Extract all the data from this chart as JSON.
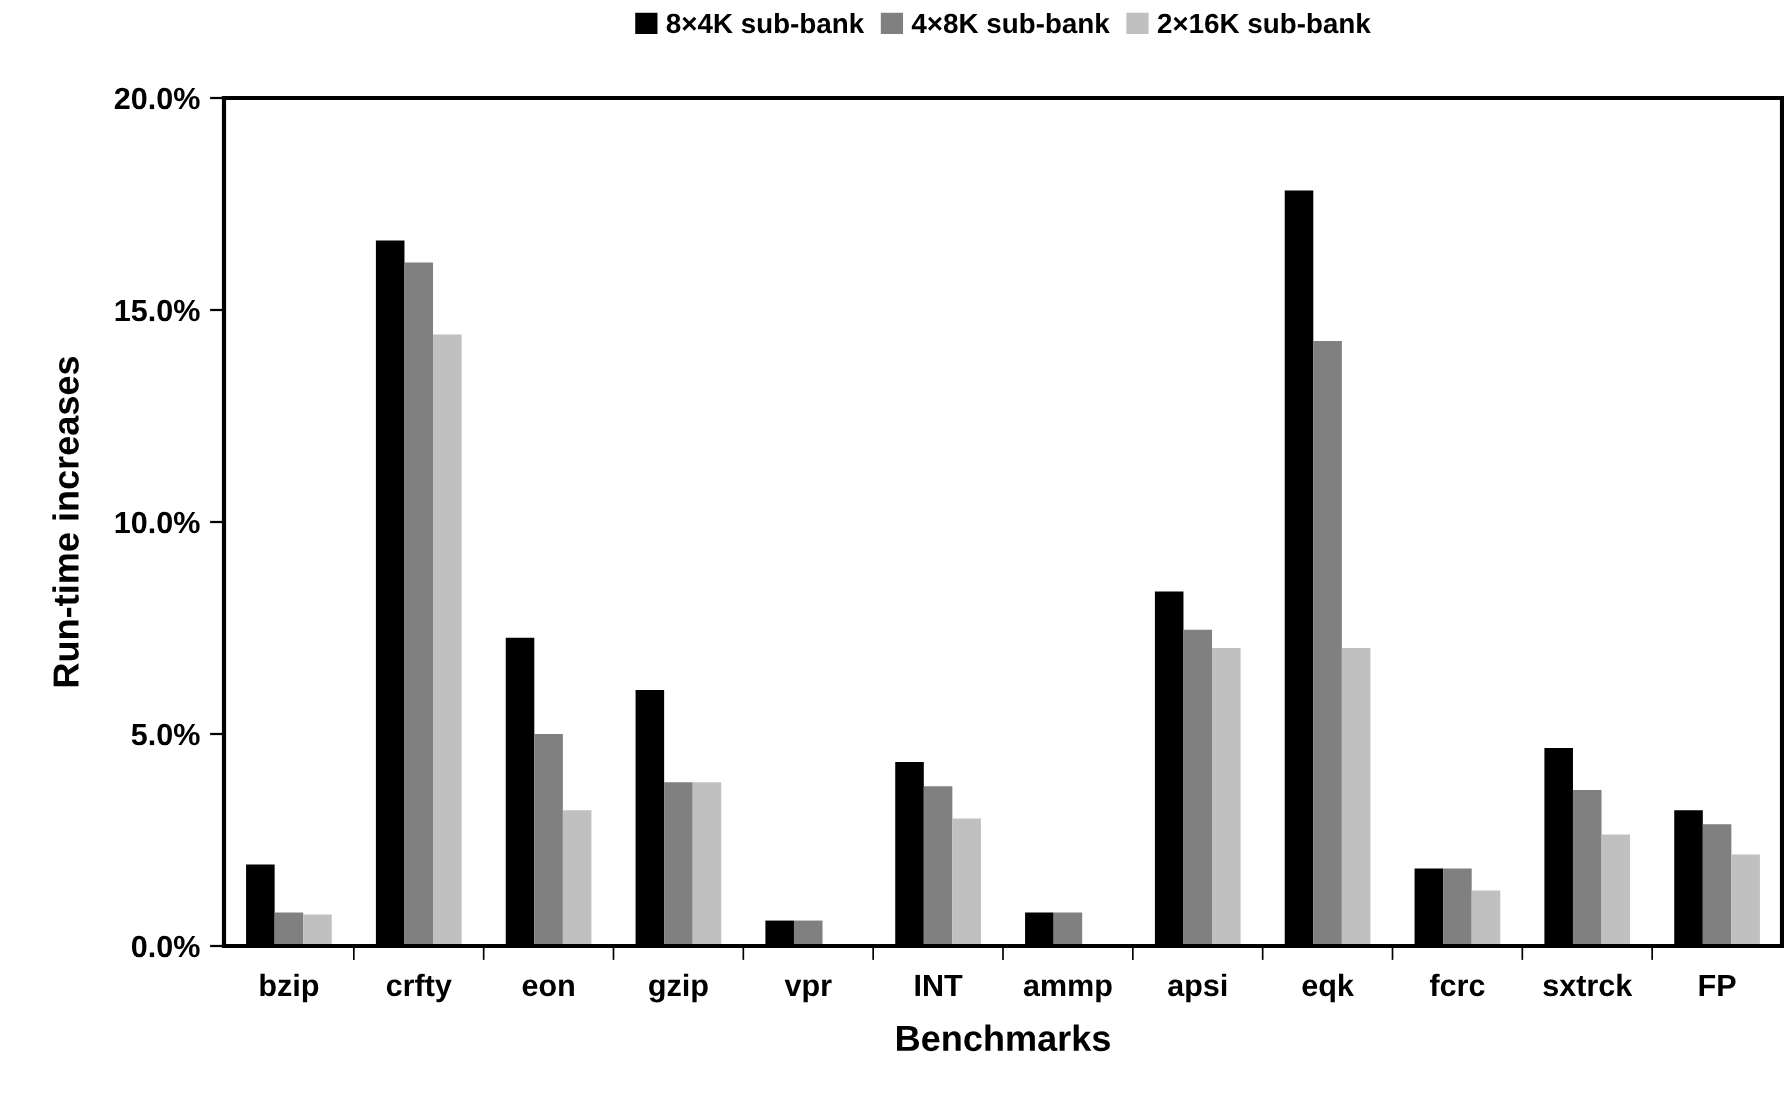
{
  "chart_data": {
    "type": "bar",
    "xlabel": "Benchmarks",
    "ylabel": "Run-time increases",
    "categories": [
      "bzip",
      "crfty",
      "eon",
      "gzip",
      "vpr",
      "INT",
      "ammp",
      "apsi",
      "eqk",
      "fcrc",
      "sxtrck",
      "FP"
    ],
    "series": [
      {
        "name": "8×4K sub-bank",
        "color": "#000000",
        "values": [
          1.92,
          16.64,
          7.27,
          6.04,
          0.6,
          4.34,
          0.79,
          8.36,
          17.82,
          1.83,
          4.67,
          3.2
        ]
      },
      {
        "name": "4×8K sub-bank",
        "color": "#808080",
        "values": [
          0.79,
          16.12,
          5.0,
          3.86,
          0.6,
          3.77,
          0.79,
          7.46,
          14.27,
          1.83,
          3.68,
          2.87
        ]
      },
      {
        "name": "2×16K sub-bank",
        "color": "#c0c0c0",
        "values": [
          0.74,
          14.42,
          3.2,
          3.86,
          0,
          3.01,
          0,
          7.03,
          7.03,
          1.31,
          2.63,
          2.16
        ]
      }
    ],
    "ylim": [
      0,
      20
    ],
    "yticks": [
      {
        "value": 0,
        "label": "0.0%"
      },
      {
        "value": 5,
        "label": "5.0%"
      },
      {
        "value": 10,
        "label": "10.0%"
      },
      {
        "value": 15,
        "label": "15.0%"
      },
      {
        "value": 20,
        "label": "20.0%"
      }
    ],
    "legend": "top",
    "grid": false
  }
}
